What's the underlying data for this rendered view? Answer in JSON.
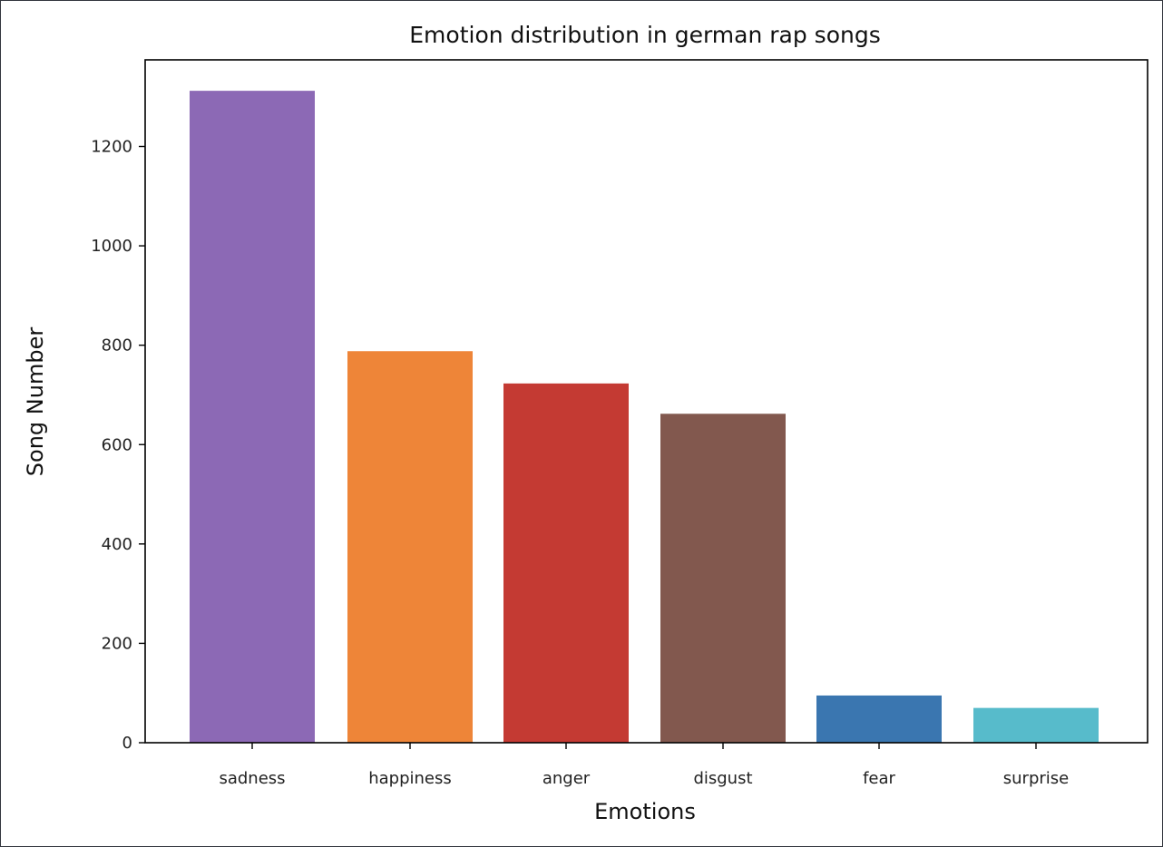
{
  "chart_data": {
    "type": "bar",
    "title": "Emotion distribution in german rap songs",
    "xlabel": "Emotions",
    "ylabel": "Song Number",
    "categories": [
      "sadness",
      "happiness",
      "anger",
      "disgust",
      "fear",
      "surprise"
    ],
    "values": [
      1312,
      788,
      723,
      662,
      95,
      70
    ],
    "colors": [
      "#8c69b5",
      "#ee8538",
      "#c43a33",
      "#82584e",
      "#3a76b0",
      "#57bbcb"
    ],
    "ylim": [
      0,
      1380
    ],
    "yticks": [
      0,
      200,
      400,
      600,
      800,
      1000,
      1200
    ],
    "grid": false,
    "legend": "none"
  }
}
